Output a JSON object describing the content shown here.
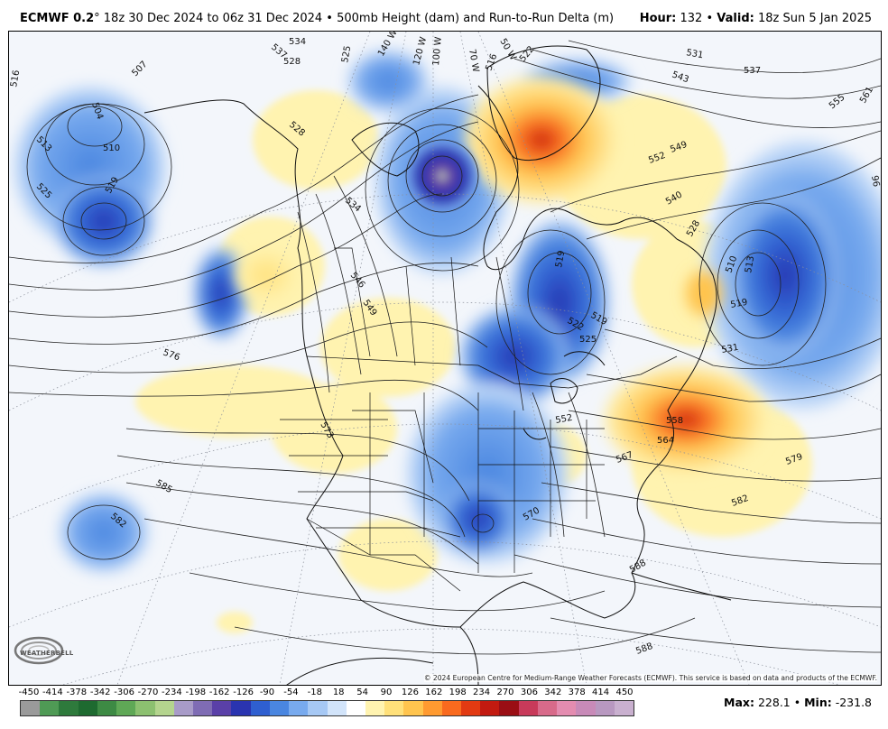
{
  "header": {
    "model": "ECMWF 0.2",
    "description": "° 18z 30 Dec 2024 to 06z 31 Dec 2024 • 500mb Height (dam) and Run-to-Run Delta (m)",
    "hour_label": "Hour:",
    "hour_value": "132",
    "separator": " • ",
    "valid_label": "Valid:",
    "valid_value": "18z Sun 5 Jan 2025"
  },
  "contour_labels": [
    {
      "text": "507"
    },
    {
      "text": "516"
    },
    {
      "text": "504"
    },
    {
      "text": "513"
    },
    {
      "text": "510"
    },
    {
      "text": "525"
    },
    {
      "text": "519"
    },
    {
      "text": "537"
    },
    {
      "text": "534"
    },
    {
      "text": "528"
    },
    {
      "text": "525"
    },
    {
      "text": "528"
    },
    {
      "text": "534"
    },
    {
      "text": "546"
    },
    {
      "text": "549"
    },
    {
      "text": "576"
    },
    {
      "text": "573"
    },
    {
      "text": "585"
    },
    {
      "text": "582"
    },
    {
      "text": "516"
    },
    {
      "text": "522"
    },
    {
      "text": "531"
    },
    {
      "text": "543"
    },
    {
      "text": "537"
    },
    {
      "text": "555"
    },
    {
      "text": "561"
    },
    {
      "text": "552"
    },
    {
      "text": "549"
    },
    {
      "text": "540"
    },
    {
      "text": "528"
    },
    {
      "text": "519"
    },
    {
      "text": "522"
    },
    {
      "text": "519"
    },
    {
      "text": "525"
    },
    {
      "text": "510"
    },
    {
      "text": "513"
    },
    {
      "text": "519"
    },
    {
      "text": "531"
    },
    {
      "text": "552"
    },
    {
      "text": "558"
    },
    {
      "text": "564"
    },
    {
      "text": "567"
    },
    {
      "text": "579"
    },
    {
      "text": "582"
    },
    {
      "text": "570"
    },
    {
      "text": "588"
    },
    {
      "text": "588"
    },
    {
      "text": "96"
    }
  ],
  "longitude_labels": [
    "140 W",
    "120 W",
    "100 W",
    "70 W",
    "50 W"
  ],
  "copyright": "© 2024 European Centre for Medium-Range Weather Forecasts (ECMWF). This service is based on data and products of the ECMWF.",
  "logo": {
    "name": "WeatherBELL",
    "text": "WEATHERBELL"
  },
  "colorbar": {
    "labels": [
      "-450",
      "-414",
      "-378",
      "-342",
      "-306",
      "-270",
      "-234",
      "-198",
      "-162",
      "-126",
      "-90",
      "-54",
      "-18",
      "18",
      "54",
      "90",
      "126",
      "162",
      "198",
      "234",
      "270",
      "306",
      "342",
      "378",
      "414",
      "450"
    ],
    "colors": [
      "#9a9a9a",
      "#4f9a55",
      "#2e7a3c",
      "#1e6a30",
      "#3d8a44",
      "#5fa856",
      "#8cc070",
      "#b4d48e",
      "#a89bc8",
      "#7f6cb4",
      "#5a40a8",
      "#2a34b0",
      "#2f5fd0",
      "#4a86e0",
      "#78aaee",
      "#a6c8f4",
      "#d2e4fa",
      "#ffffff",
      "#fff3b0",
      "#ffe07a",
      "#ffc44e",
      "#ff9a30",
      "#f96a1e",
      "#e23a12",
      "#c21a10",
      "#9a0e14",
      "#c83a5a",
      "#d86a8a",
      "#e48cb0",
      "#c88ab8",
      "#b898c0",
      "#c9b0cf"
    ]
  },
  "stats": {
    "max_label": "Max:",
    "max_value": "228.1",
    "min_label": "Min:",
    "min_value": "-231.8"
  },
  "colors": {
    "negative_strong": "#2a34b0",
    "negative_mid": "#4a86e0",
    "negative_light": "#a6c8f4",
    "positive_light": "#fff3b0",
    "positive_mid": "#ffc44e",
    "positive_strong": "#e23a12"
  }
}
